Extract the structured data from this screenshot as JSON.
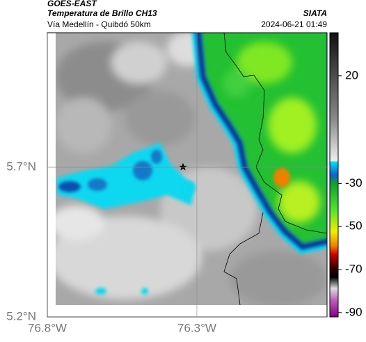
{
  "header": {
    "satellite": "GOES-EAST",
    "product": "Temperatura de Brillo CH13",
    "region": "Vía Medellín - Quibdó 50km",
    "source": "SIATA",
    "timestamp": "2024-06-21 01:49"
  },
  "map": {
    "lon_range": [
      -76.8,
      -75.865
    ],
    "lat_range": [
      5.2,
      6.149
    ],
    "lon_ticks": [
      {
        "value": -76.8,
        "label": "76.8°W"
      },
      {
        "value": -76.3,
        "label": "76.3°W"
      }
    ],
    "lat_ticks": [
      {
        "value": 5.7,
        "label": "5.7°N"
      },
      {
        "value": 5.2,
        "label": "5.2°N"
      }
    ]
  },
  "colorbar": {
    "range": [
      -92,
      40
    ],
    "ticks": [
      20,
      -30,
      -50,
      -70,
      -90
    ]
  }
}
